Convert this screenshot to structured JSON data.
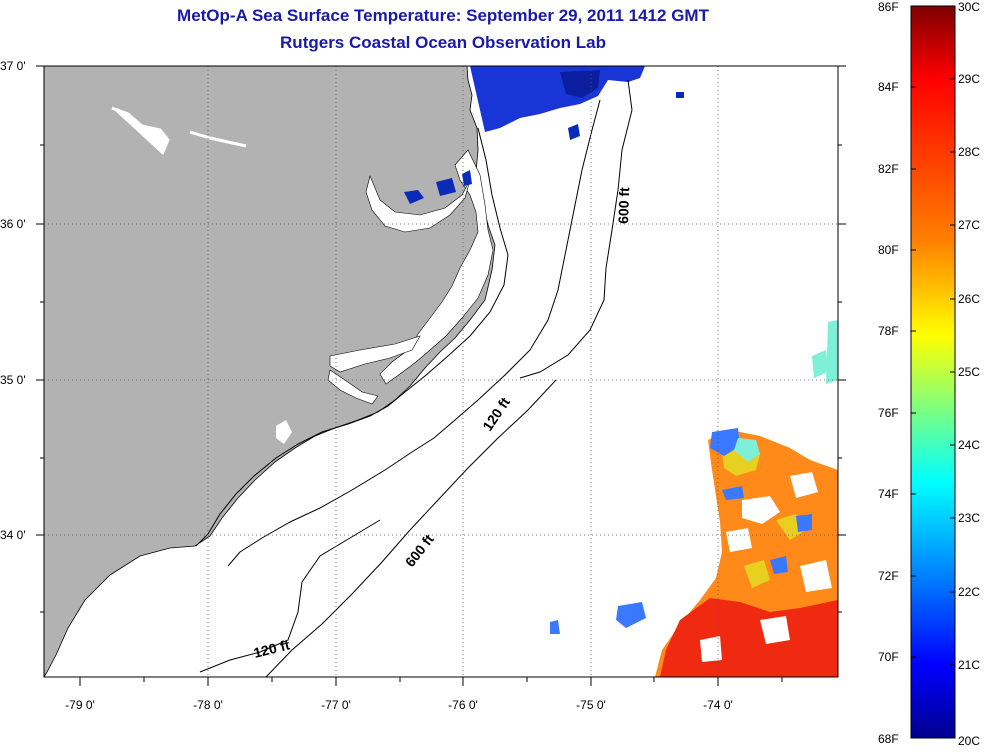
{
  "title_line1": "MetOp-A Sea Surface Temperature:  September 29, 2011 1412 GMT",
  "title_line2": "Rutgers Coastal Ocean Observation Lab",
  "lat_ticks": [
    "37 0'",
    "36 0'",
    "35 0'",
    "34 0'"
  ],
  "lon_ticks": [
    "-79 0'",
    "-78 0'",
    "-77 0'",
    "-76 0'",
    "-75 0'",
    "-74 0'"
  ],
  "contour_labels": {
    "c600_north": "600 ft",
    "c120_mid": "120 ft",
    "c600_south": "600 ft",
    "c120_south": "120 ft"
  },
  "colorbar": {
    "fahrenheit": [
      "86F",
      "84F",
      "82F",
      "80F",
      "78F",
      "76F",
      "74F",
      "72F",
      "70F",
      "68F"
    ],
    "celsius": [
      "30C",
      "29C",
      "28C",
      "27C",
      "26C",
      "25C",
      "24C",
      "23C",
      "22C",
      "21C",
      "20C"
    ]
  },
  "colors": {
    "land": "#b2b2b2",
    "title": "#1a1aa8",
    "colorbar_stops": [
      "#7f0000",
      "#ff0000",
      "#ff7f00",
      "#ffff00",
      "#7fff7f",
      "#00ffff",
      "#007fff",
      "#0000ff",
      "#00008f"
    ]
  }
}
